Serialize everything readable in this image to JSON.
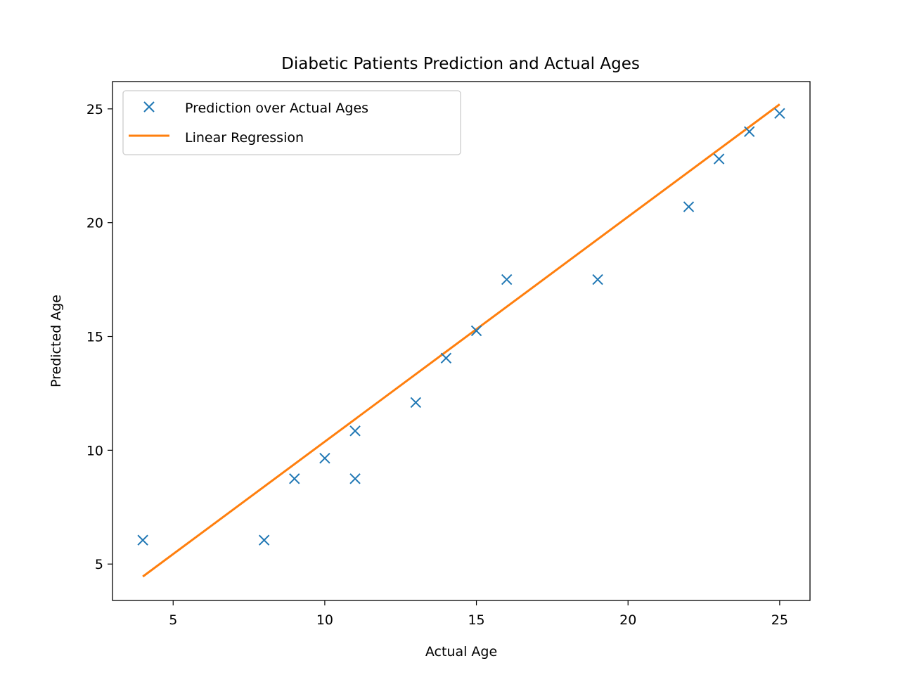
{
  "chart_data": {
    "type": "scatter",
    "title": "Diabetic Patients Prediction and Actual Ages",
    "xlabel": "Actual Age",
    "ylabel": "Predicted Age",
    "xlim": [
      3,
      26
    ],
    "ylim": [
      3.4,
      26.2
    ],
    "xticks": [
      5,
      10,
      15,
      20,
      25
    ],
    "yticks": [
      5,
      10,
      15,
      20,
      25
    ],
    "grid": false,
    "legend_position": "top-left",
    "series": [
      {
        "name": "Prediction over Actual Ages",
        "kind": "scatter",
        "marker": "x",
        "color": "#1f77b4",
        "points": [
          {
            "x": 4,
            "y": 6.05
          },
          {
            "x": 8,
            "y": 6.05
          },
          {
            "x": 9,
            "y": 8.75
          },
          {
            "x": 10,
            "y": 9.65
          },
          {
            "x": 11,
            "y": 10.85
          },
          {
            "x": 11,
            "y": 8.75
          },
          {
            "x": 13,
            "y": 12.1
          },
          {
            "x": 14,
            "y": 14.05
          },
          {
            "x": 15,
            "y": 15.25
          },
          {
            "x": 16,
            "y": 17.5
          },
          {
            "x": 19,
            "y": 17.5
          },
          {
            "x": 22,
            "y": 20.7
          },
          {
            "x": 23,
            "y": 22.8
          },
          {
            "x": 24,
            "y": 24.0
          },
          {
            "x": 25,
            "y": 24.8
          }
        ]
      },
      {
        "name": "Linear Regression",
        "kind": "line",
        "color": "#ff7f0e",
        "points": [
          {
            "x": 4,
            "y": 4.45
          },
          {
            "x": 25,
            "y": 25.2
          }
        ]
      }
    ]
  }
}
